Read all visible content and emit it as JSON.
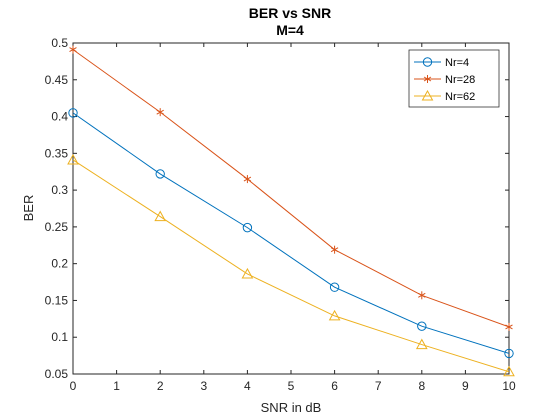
{
  "chart_data": {
    "type": "line",
    "title": "BER vs SNR",
    "subtitle": "M=4",
    "xlabel": "SNR in dB",
    "ylabel": "BER",
    "xlim": [
      0,
      10
    ],
    "ylim": [
      0.05,
      0.5
    ],
    "xticks": [
      "0",
      "1",
      "2",
      "3",
      "4",
      "5",
      "6",
      "7",
      "8",
      "9",
      "10"
    ],
    "yticks": [
      "0.05",
      "0.1",
      "0.15",
      "0.2",
      "0.25",
      "0.3",
      "0.35",
      "0.4",
      "0.45",
      "0.5"
    ],
    "x": [
      0,
      2,
      4,
      6,
      8,
      10
    ],
    "grid": false,
    "legend_position": "top-right",
    "series": [
      {
        "name": "Nr=4",
        "values": [
          0.405,
          0.322,
          0.249,
          0.168,
          0.115,
          0.078
        ],
        "color": "#0072BD",
        "marker": "circle"
      },
      {
        "name": "Nr=28",
        "values": [
          0.491,
          0.406,
          0.315,
          0.219,
          0.157,
          0.114
        ],
        "color": "#D95319",
        "marker": "asterisk"
      },
      {
        "name": "Nr=62",
        "values": [
          0.341,
          0.264,
          0.186,
          0.129,
          0.09,
          0.053
        ],
        "color": "#EDB120",
        "marker": "triangle"
      }
    ]
  }
}
